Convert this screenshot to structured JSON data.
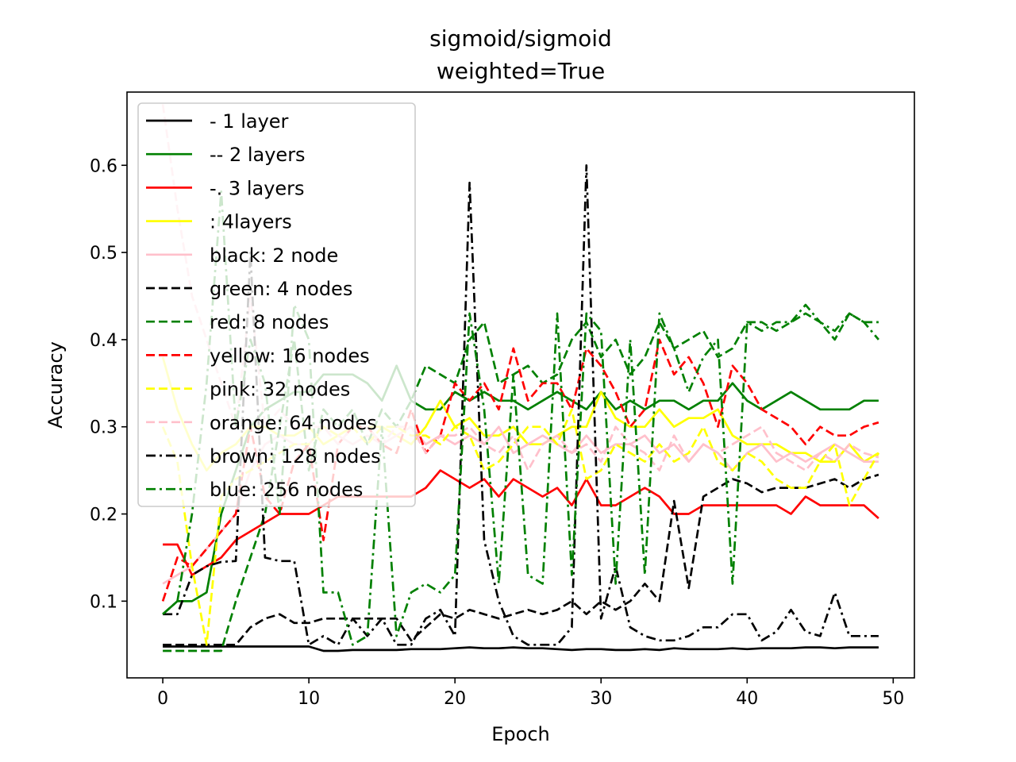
{
  "chart_data": {
    "type": "line",
    "title": "sigmoid/sigmoid",
    "subtitle": "weighted=True",
    "xlabel": "Epoch",
    "ylabel": "Accuracy",
    "xlim": [
      -2.45,
      51.45
    ],
    "ylim": [
      0.012,
      0.684
    ],
    "xticks": [
      0,
      10,
      20,
      30,
      40,
      50
    ],
    "yticks": [
      0.1,
      0.2,
      0.3,
      0.4,
      0.5,
      0.6
    ],
    "xtick_labels": [
      "0",
      "10",
      "20",
      "30",
      "40",
      "50"
    ],
    "ytick_labels": [
      "0.1",
      "0.2",
      "0.3",
      "0.4",
      "0.5",
      "0.6"
    ],
    "grid": false,
    "legend_position": "upper-left",
    "legend": [
      {
        "label": "- 1 layer",
        "color": "#000000",
        "dash": "solid"
      },
      {
        "label": "-- 2 layers",
        "color": "#008000",
        "dash": "solid"
      },
      {
        "label": "-. 3 layers",
        "color": "#ff0000",
        "dash": "solid"
      },
      {
        "label": ": 4layers",
        "color": "#ffff00",
        "dash": "solid"
      },
      {
        "label": "black: 2 node",
        "color": "#ffc0cb",
        "dash": "solid"
      },
      {
        "label": "green: 4 nodes",
        "color": "#000000",
        "dash": "dashed"
      },
      {
        "label": "red: 8 nodes",
        "color": "#008000",
        "dash": "dashed"
      },
      {
        "label": "yellow: 16 nodes",
        "color": "#ff0000",
        "dash": "dashed"
      },
      {
        "label": "pink: 32 nodes",
        "color": "#ffff00",
        "dash": "dashed"
      },
      {
        "label": "orange: 64 nodes",
        "color": "#ffc0cb",
        "dash": "dashed"
      },
      {
        "label": "brown: 128 nodes",
        "color": "#000000",
        "dashdot": true,
        "dash": "dashdot"
      },
      {
        "label": "blue: 256 nodes",
        "color": "#008000",
        "dash": "dashdot"
      }
    ],
    "series": [
      {
        "color": "#000000",
        "dash": "solid",
        "y": [
          0.048,
          0.048,
          0.048,
          0.048,
          0.048,
          0.048,
          0.048,
          0.048,
          0.048,
          0.048,
          0.048,
          0.043,
          0.043,
          0.044,
          0.044,
          0.044,
          0.044,
          0.045,
          0.045,
          0.045,
          0.046,
          0.047,
          0.046,
          0.046,
          0.047,
          0.046,
          0.046,
          0.045,
          0.044,
          0.045,
          0.045,
          0.044,
          0.044,
          0.045,
          0.044,
          0.046,
          0.045,
          0.045,
          0.045,
          0.046,
          0.045,
          0.046,
          0.046,
          0.046,
          0.047,
          0.047,
          0.046,
          0.047,
          0.047,
          0.047
        ]
      },
      {
        "color": "#008000",
        "dash": "solid",
        "y": [
          0.085,
          0.1,
          0.1,
          0.11,
          0.2,
          0.25,
          0.3,
          0.32,
          0.33,
          0.34,
          0.34,
          0.36,
          0.36,
          0.36,
          0.35,
          0.33,
          0.37,
          0.33,
          0.32,
          0.32,
          0.34,
          0.33,
          0.34,
          0.33,
          0.33,
          0.32,
          0.33,
          0.34,
          0.33,
          0.32,
          0.34,
          0.32,
          0.33,
          0.32,
          0.33,
          0.33,
          0.32,
          0.33,
          0.33,
          0.35,
          0.33,
          0.32,
          0.33,
          0.34,
          0.33,
          0.32,
          0.32,
          0.32,
          0.33,
          0.33
        ]
      },
      {
        "color": "#ff0000",
        "dash": "solid",
        "y": [
          0.165,
          0.165,
          0.13,
          0.14,
          0.15,
          0.17,
          0.18,
          0.19,
          0.2,
          0.2,
          0.2,
          0.21,
          0.22,
          0.22,
          0.22,
          0.22,
          0.22,
          0.22,
          0.23,
          0.25,
          0.24,
          0.23,
          0.24,
          0.22,
          0.24,
          0.23,
          0.22,
          0.23,
          0.21,
          0.24,
          0.21,
          0.21,
          0.22,
          0.23,
          0.22,
          0.2,
          0.2,
          0.21,
          0.21,
          0.21,
          0.21,
          0.21,
          0.21,
          0.2,
          0.22,
          0.21,
          0.21,
          0.21,
          0.21,
          0.195
        ]
      },
      {
        "color": "#ffff00",
        "dash": "solid",
        "y": [
          0.38,
          0.32,
          0.28,
          0.25,
          0.27,
          0.28,
          0.3,
          0.3,
          0.29,
          0.29,
          0.3,
          0.28,
          0.29,
          0.3,
          0.3,
          0.3,
          0.29,
          0.28,
          0.3,
          0.33,
          0.3,
          0.31,
          0.29,
          0.29,
          0.3,
          0.28,
          0.28,
          0.29,
          0.3,
          0.3,
          0.34,
          0.31,
          0.3,
          0.3,
          0.32,
          0.3,
          0.31,
          0.31,
          0.32,
          0.29,
          0.28,
          0.28,
          0.28,
          0.27,
          0.27,
          0.26,
          0.26,
          0.28,
          0.26,
          0.27
        ]
      },
      {
        "color": "#ffc0cb",
        "dash": "solid",
        "y": [
          0.12,
          0.13,
          0.14,
          0.16,
          0.18,
          0.2,
          0.25,
          0.28,
          0.29,
          0.28,
          0.28,
          0.3,
          0.29,
          0.28,
          0.29,
          0.28,
          0.29,
          0.3,
          0.28,
          0.29,
          0.28,
          0.29,
          0.28,
          0.3,
          0.27,
          0.28,
          0.29,
          0.28,
          0.27,
          0.29,
          0.27,
          0.28,
          0.28,
          0.29,
          0.27,
          0.28,
          0.26,
          0.28,
          0.27,
          0.25,
          0.27,
          0.28,
          0.26,
          0.27,
          0.26,
          0.27,
          0.28,
          0.27,
          0.26,
          0.26
        ]
      },
      {
        "color": "#000000",
        "dash": "dashed",
        "y": [
          0.05,
          0.05,
          0.05,
          0.05,
          0.05,
          0.05,
          0.07,
          0.08,
          0.085,
          0.075,
          0.075,
          0.08,
          0.08,
          0.08,
          0.08,
          0.08,
          0.08,
          0.055,
          0.07,
          0.085,
          0.08,
          0.09,
          0.085,
          0.08,
          0.085,
          0.09,
          0.085,
          0.09,
          0.1,
          0.085,
          0.1,
          0.09,
          0.1,
          0.12,
          0.1,
          0.215,
          0.115,
          0.22,
          0.23,
          0.24,
          0.235,
          0.225,
          0.23,
          0.23,
          0.23,
          0.235,
          0.24,
          0.23,
          0.24,
          0.245
        ]
      },
      {
        "color": "#008000",
        "dash": "dashed",
        "y": [
          0.043,
          0.043,
          0.043,
          0.043,
          0.043,
          0.1,
          0.15,
          0.2,
          0.3,
          0.4,
          0.25,
          0.32,
          0.3,
          0.32,
          0.28,
          0.32,
          0.3,
          0.33,
          0.37,
          0.36,
          0.35,
          0.4,
          0.42,
          0.35,
          0.36,
          0.37,
          0.35,
          0.36,
          0.4,
          0.42,
          0.38,
          0.4,
          0.36,
          0.38,
          0.42,
          0.39,
          0.4,
          0.41,
          0.38,
          0.39,
          0.42,
          0.42,
          0.41,
          0.42,
          0.43,
          0.42,
          0.4,
          0.43,
          0.42,
          0.42
        ]
      },
      {
        "color": "#ff0000",
        "dash": "dashed",
        "y": [
          0.1,
          0.15,
          0.14,
          0.16,
          0.18,
          0.2,
          0.3,
          0.22,
          0.2,
          0.26,
          0.28,
          0.17,
          0.28,
          0.3,
          0.3,
          0.28,
          0.27,
          0.32,
          0.27,
          0.29,
          0.35,
          0.33,
          0.35,
          0.32,
          0.39,
          0.33,
          0.35,
          0.35,
          0.32,
          0.39,
          0.37,
          0.34,
          0.3,
          0.32,
          0.4,
          0.36,
          0.38,
          0.35,
          0.3,
          0.37,
          0.35,
          0.32,
          0.31,
          0.3,
          0.28,
          0.3,
          0.29,
          0.29,
          0.3,
          0.305
        ]
      },
      {
        "color": "#ffff00",
        "dash": "dashed",
        "y": [
          0.3,
          0.26,
          0.14,
          0.05,
          0.22,
          0.24,
          0.25,
          0.26,
          0.27,
          0.28,
          0.28,
          0.3,
          0.29,
          0.3,
          0.28,
          0.3,
          0.3,
          0.29,
          0.29,
          0.28,
          0.3,
          0.29,
          0.25,
          0.26,
          0.28,
          0.3,
          0.3,
          0.28,
          0.32,
          0.24,
          0.25,
          0.28,
          0.27,
          0.26,
          0.28,
          0.26,
          0.27,
          0.3,
          0.26,
          0.25,
          0.27,
          0.26,
          0.24,
          0.23,
          0.23,
          0.26,
          0.28,
          0.21,
          0.24,
          0.27
        ]
      },
      {
        "color": "#ffc0cb",
        "dash": "dashed",
        "y": [
          0.67,
          0.55,
          0.45,
          0.4,
          0.35,
          0.3,
          0.45,
          0.3,
          0.32,
          0.3,
          0.3,
          0.3,
          0.28,
          0.3,
          0.3,
          0.28,
          0.3,
          0.3,
          0.27,
          0.29,
          0.29,
          0.3,
          0.28,
          0.27,
          0.29,
          0.25,
          0.28,
          0.29,
          0.27,
          0.28,
          0.26,
          0.3,
          0.28,
          0.27,
          0.25,
          0.29,
          0.26,
          0.28,
          0.27,
          0.28,
          0.29,
          0.3,
          0.27,
          0.26,
          0.25,
          0.27,
          0.26,
          0.28,
          0.27,
          0.265
        ]
      },
      {
        "color": "#000000",
        "dash": "dashdot",
        "y": [
          0.085,
          0.085,
          0.13,
          0.14,
          0.145,
          0.146,
          0.5,
          0.15,
          0.146,
          0.146,
          0.05,
          0.06,
          0.05,
          0.08,
          0.06,
          0.08,
          0.05,
          0.05,
          0.08,
          0.09,
          0.06,
          0.58,
          0.17,
          0.1,
          0.06,
          0.05,
          0.05,
          0.05,
          0.07,
          0.6,
          0.08,
          0.14,
          0.07,
          0.06,
          0.055,
          0.055,
          0.06,
          0.07,
          0.07,
          0.085,
          0.085,
          0.055,
          0.065,
          0.09,
          0.065,
          0.06,
          0.11,
          0.06,
          0.06,
          0.06
        ]
      },
      {
        "color": "#008000",
        "dash": "dashdot",
        "y": [
          0.085,
          0.1,
          0.2,
          0.35,
          0.57,
          0.3,
          0.4,
          0.35,
          0.2,
          0.44,
          0.4,
          0.11,
          0.11,
          0.05,
          0.06,
          0.3,
          0.06,
          0.11,
          0.12,
          0.11,
          0.13,
          0.43,
          0.32,
          0.12,
          0.36,
          0.13,
          0.12,
          0.43,
          0.13,
          0.43,
          0.41,
          0.12,
          0.4,
          0.13,
          0.43,
          0.39,
          0.34,
          0.38,
          0.4,
          0.12,
          0.42,
          0.41,
          0.42,
          0.42,
          0.44,
          0.42,
          0.41,
          0.43,
          0.42,
          0.4
        ]
      }
    ]
  }
}
